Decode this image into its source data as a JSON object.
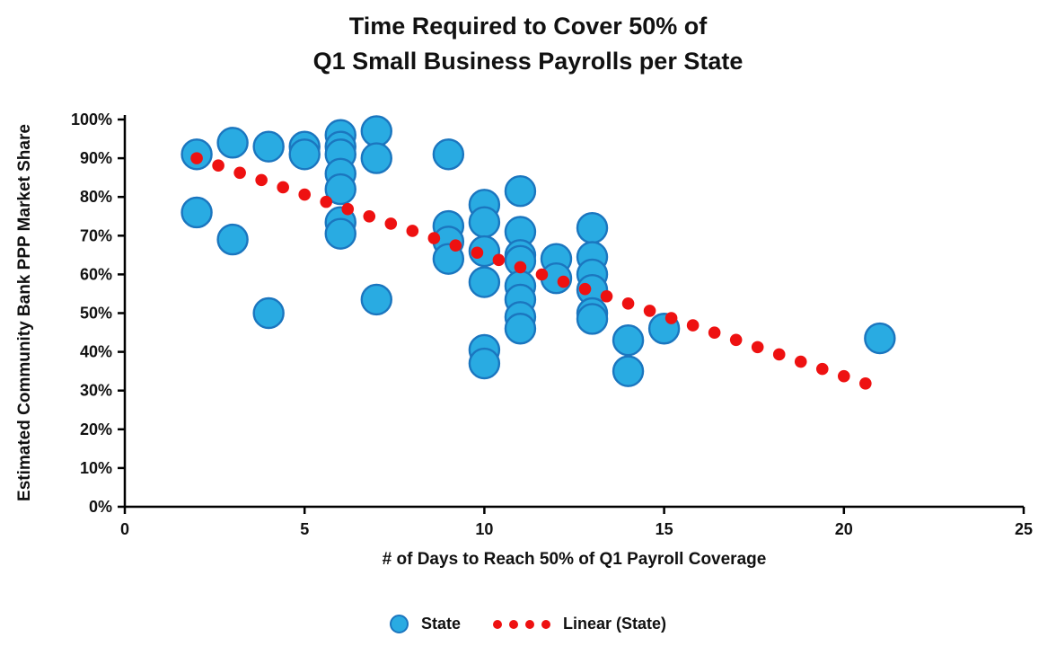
{
  "title": {
    "line1": "Time Required to Cover 50% of",
    "line2": "Q1 Small Business Payrolls per State"
  },
  "legend": {
    "items": [
      {
        "label": "State",
        "marker": "circle"
      },
      {
        "label": "Linear (State)",
        "marker": "dotted-line"
      }
    ]
  },
  "colors": {
    "point_fill": "#29abe2",
    "point_stroke": "#1b76bf",
    "trend": "#ee1111",
    "axis": "#000000",
    "text": "#111111"
  },
  "chart_data": {
    "type": "scatter",
    "title": "Time Required to Cover 50% of Q1 Small Business Payrolls per State",
    "xlabel": "# of Days to Reach 50% of Q1 Payroll Coverage",
    "ylabel": "Estimated Community Bank PPP Market Share",
    "xlim": [
      0,
      25
    ],
    "ylim": [
      0,
      100
    ],
    "grid": false,
    "legend_position": "bottom",
    "x_ticks": [
      0,
      5,
      10,
      15,
      20,
      25
    ],
    "y_ticks": [
      {
        "v": 0,
        "label": "0%"
      },
      {
        "v": 10,
        "label": "10%"
      },
      {
        "v": 20,
        "label": "20%"
      },
      {
        "v": 30,
        "label": "30%"
      },
      {
        "v": 40,
        "label": "40%"
      },
      {
        "v": 50,
        "label": "50%"
      },
      {
        "v": 60,
        "label": "60%"
      },
      {
        "v": 70,
        "label": "70%"
      },
      {
        "v": 80,
        "label": "80%"
      },
      {
        "v": 90,
        "label": "90%"
      },
      {
        "v": 100,
        "label": "100%"
      }
    ],
    "series": [
      {
        "name": "State",
        "type": "scatter",
        "points": [
          [
            2,
            91
          ],
          [
            2,
            76
          ],
          [
            3,
            94
          ],
          [
            3,
            69
          ],
          [
            4,
            93
          ],
          [
            4,
            50
          ],
          [
            5,
            93
          ],
          [
            5,
            91
          ],
          [
            6,
            96
          ],
          [
            6,
            93
          ],
          [
            6,
            91
          ],
          [
            6,
            86
          ],
          [
            6,
            82
          ],
          [
            6,
            73.5
          ],
          [
            6,
            70.5
          ],
          [
            7,
            97
          ],
          [
            7,
            90
          ],
          [
            7,
            53.5
          ],
          [
            9,
            91
          ],
          [
            9,
            72.5
          ],
          [
            9,
            68.5
          ],
          [
            9,
            64
          ],
          [
            10,
            78
          ],
          [
            10,
            73.5
          ],
          [
            10,
            66
          ],
          [
            10,
            58
          ],
          [
            10,
            40.5
          ],
          [
            10,
            37
          ],
          [
            11,
            81.5
          ],
          [
            11,
            71
          ],
          [
            11,
            65
          ],
          [
            11,
            63.5
          ],
          [
            11,
            57
          ],
          [
            11,
            53.5
          ],
          [
            11,
            49
          ],
          [
            11,
            46
          ],
          [
            12,
            64
          ],
          [
            12,
            59
          ],
          [
            13,
            72
          ],
          [
            13,
            64.5
          ],
          [
            13,
            60
          ],
          [
            13,
            56
          ],
          [
            13,
            50
          ],
          [
            13,
            48.5
          ],
          [
            14,
            43
          ],
          [
            14,
            35
          ],
          [
            15,
            46
          ],
          [
            21,
            43.5
          ]
        ]
      },
      {
        "name": "Linear (State)",
        "type": "trendline",
        "style": "dotted",
        "slope": -3.127,
        "intercept": 96.25,
        "x_start": 2.0,
        "x_end": 20.6,
        "dot_step": 0.6
      }
    ]
  }
}
